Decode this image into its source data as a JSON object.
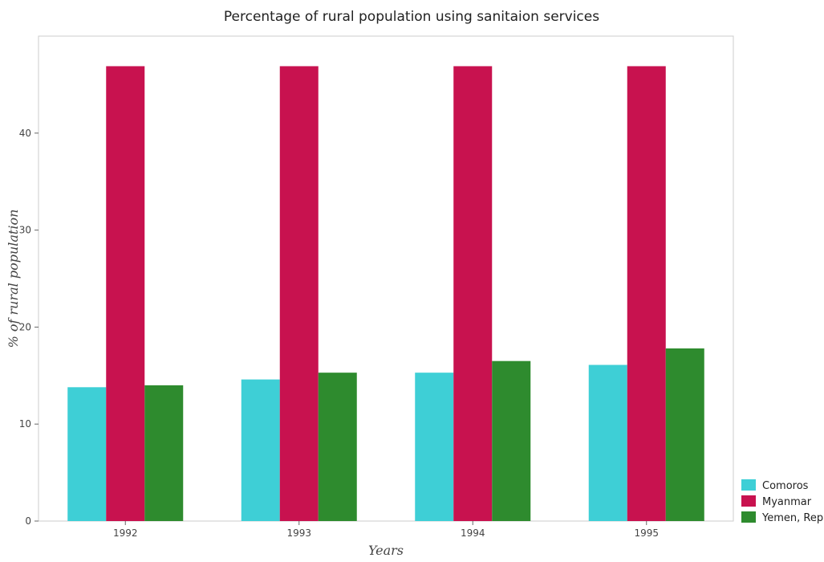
{
  "chart_data": {
    "type": "bar",
    "title": "Percentage of rural population using sanitaion services",
    "xlabel": "Years",
    "ylabel": "% of rural population",
    "categories": [
      "1992",
      "1993",
      "1994",
      "1995"
    ],
    "ylim": [
      0,
      50
    ],
    "yticks": [
      0,
      10,
      20,
      30,
      40
    ],
    "series": [
      {
        "name": "Comoros",
        "color": "#3ecfd6",
        "values": [
          13.8,
          14.6,
          15.3,
          16.1
        ]
      },
      {
        "name": "Myanmar",
        "color": "#c8124f",
        "values": [
          46.9,
          46.9,
          46.9,
          46.9
        ]
      },
      {
        "name": "Yemen, Rep.",
        "color": "#2e8b2e",
        "values": [
          14.0,
          15.3,
          16.5,
          17.8
        ]
      }
    ],
    "legend_position": "bottom-right",
    "grid": false
  }
}
